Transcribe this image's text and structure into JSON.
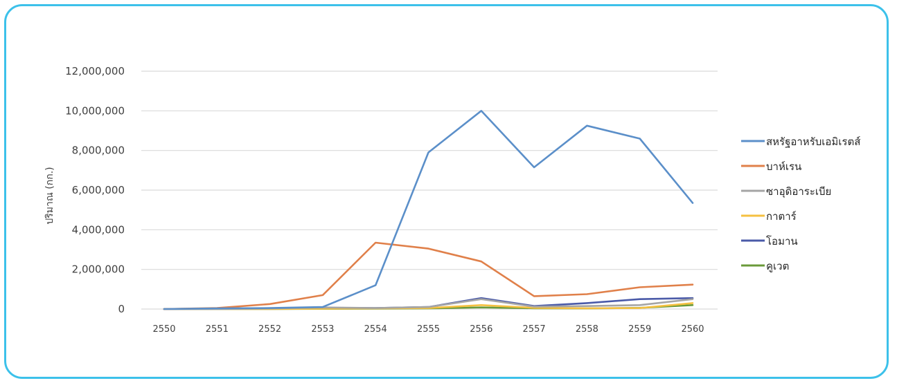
{
  "chart_data": {
    "type": "line",
    "title": "",
    "xlabel": "",
    "ylabel": "ปริมาณ (กก.)",
    "x": [
      "2550",
      "2551",
      "2552",
      "2553",
      "2554",
      "2555",
      "2556",
      "2557",
      "2558",
      "2559",
      "2560"
    ],
    "ylim": [
      0,
      12000000
    ],
    "yticks": [
      0,
      2000000,
      4000000,
      6000000,
      8000000,
      10000000,
      12000000
    ],
    "ytick_labels": [
      "0",
      "2,000,000",
      "4,000,000",
      "6,000,000",
      "8,000,000",
      "10,000,000",
      "12,000,000"
    ],
    "grid": true,
    "legend_position": "right",
    "series": [
      {
        "name": "สหรัฐอาหรับเอมิเรตส์",
        "color": "#5b8fc9",
        "values": [
          0,
          30000,
          50000,
          100000,
          1200000,
          7900000,
          10000000,
          7150000,
          9250000,
          8600000,
          5350000
        ]
      },
      {
        "name": "บาห์เรน",
        "color": "#e0804a",
        "values": [
          0,
          50000,
          250000,
          700000,
          3350000,
          3050000,
          2400000,
          650000,
          750000,
          1100000,
          1230000
        ]
      },
      {
        "name": "ซาอุดิอาระเบีย",
        "color": "#a5a5a5",
        "values": [
          0,
          0,
          30000,
          80000,
          50000,
          100000,
          500000,
          120000,
          150000,
          200000,
          500000
        ]
      },
      {
        "name": "กาตาร์",
        "color": "#f5c040",
        "values": [
          0,
          0,
          0,
          20000,
          30000,
          50000,
          200000,
          60000,
          40000,
          50000,
          300000
        ]
      },
      {
        "name": "โอมาน",
        "color": "#4a5aa8",
        "values": [
          0,
          10000,
          20000,
          60000,
          50000,
          100000,
          550000,
          150000,
          300000,
          500000,
          550000
        ]
      },
      {
        "name": "คูเวต",
        "color": "#6a9a3a",
        "values": [
          0,
          0,
          0,
          10000,
          20000,
          30000,
          80000,
          40000,
          30000,
          60000,
          200000
        ]
      }
    ]
  }
}
